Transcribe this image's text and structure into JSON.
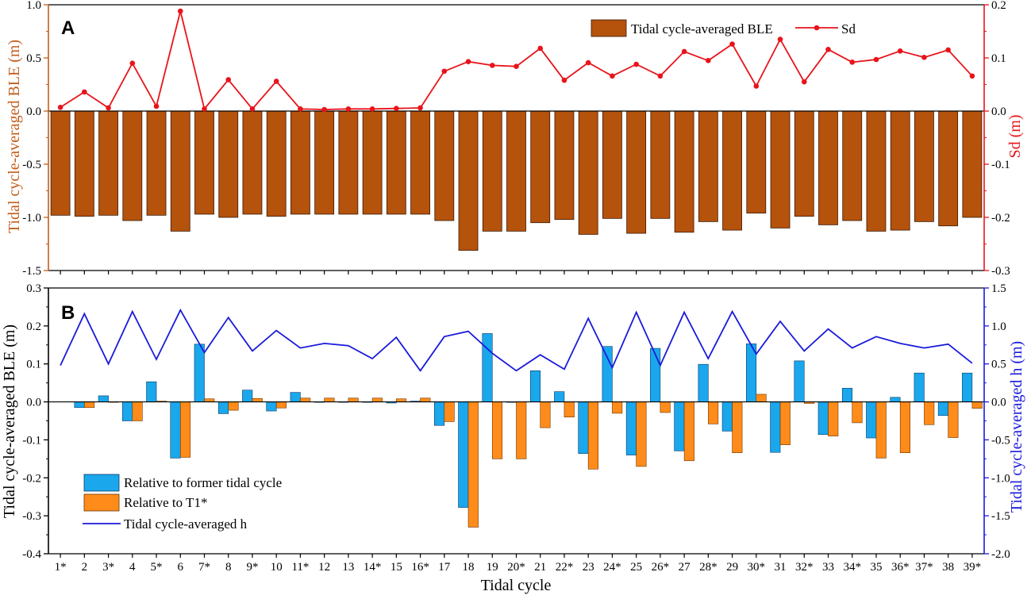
{
  "chart_data": [
    {
      "panel": "A",
      "type": "bar",
      "xlabel": "Tidal cycle",
      "categories": [
        "1*",
        "2",
        "3*",
        "4",
        "5*",
        "6",
        "7*",
        "8",
        "9*",
        "10",
        "11*",
        "12",
        "13",
        "14*",
        "15",
        "16*",
        "17",
        "18",
        "19",
        "20*",
        "21",
        "22*",
        "23",
        "24*",
        "25",
        "26*",
        "27",
        "28*",
        "29",
        "30*",
        "31",
        "32*",
        "33",
        "34*",
        "35",
        "36*",
        "37*",
        "38",
        "39*"
      ],
      "left_axis": {
        "label": "Tidal cycle-averaged BLE (m)",
        "ylim": [
          -1.5,
          1.0
        ],
        "ticks": [
          1.0,
          0.5,
          0.0,
          -0.5,
          -1.0,
          -1.5
        ],
        "tick_labels": [
          "1.0",
          "0.5",
          "0.0",
          "-0.5",
          "-1.0",
          "-1.5"
        ],
        "color": "#c25e1c"
      },
      "right_axis": {
        "label": "Sd (m)",
        "ylim": [
          -0.3,
          0.2
        ],
        "ticks": [
          0.2,
          0.1,
          0.0,
          -0.1,
          -0.2,
          -0.3
        ],
        "tick_labels": [
          "0.2",
          "0.1",
          "0.0",
          "-0.1",
          "-0.2",
          "-0.3"
        ],
        "color": "#e8141a"
      },
      "series": [
        {
          "name": "Tidal cycle-averaged BLE",
          "type": "bar",
          "axis": "left",
          "color": "#b5520c",
          "values": [
            -0.98,
            -0.99,
            -0.98,
            -1.03,
            -0.98,
            -1.13,
            -0.97,
            -1.0,
            -0.97,
            -0.99,
            -0.97,
            -0.97,
            -0.97,
            -0.97,
            -0.97,
            -0.97,
            -1.03,
            -1.31,
            -1.13,
            -1.13,
            -1.05,
            -1.02,
            -1.16,
            -1.01,
            -1.15,
            -1.01,
            -1.14,
            -1.04,
            -1.12,
            -0.96,
            -1.1,
            -0.99,
            -1.07,
            -1.03,
            -1.13,
            -1.12,
            -1.04,
            -1.08,
            -1.0
          ]
        },
        {
          "name": "Sd",
          "type": "line",
          "axis": "right",
          "color": "#e8141a",
          "values": [
            0.007,
            0.036,
            0.006,
            0.09,
            0.009,
            0.188,
            0.004,
            0.059,
            0.004,
            0.056,
            0.004,
            0.003,
            0.004,
            0.004,
            0.005,
            0.006,
            0.075,
            0.093,
            0.086,
            0.084,
            0.118,
            0.058,
            0.091,
            0.066,
            0.088,
            0.066,
            0.112,
            0.095,
            0.126,
            0.047,
            0.135,
            0.055,
            0.116,
            0.092,
            0.097,
            0.113,
            0.101,
            0.115,
            0.066
          ]
        }
      ],
      "legend": [
        "Tidal cycle-averaged BLE",
        "Sd"
      ],
      "legend_position": "top-right"
    },
    {
      "panel": "B",
      "type": "bar",
      "xlabel": "Tidal cycle",
      "categories": [
        "1*",
        "2",
        "3*",
        "4",
        "5*",
        "6",
        "7*",
        "8",
        "9*",
        "10",
        "11*",
        "12",
        "13",
        "14*",
        "15",
        "16*",
        "17",
        "18",
        "19",
        "20*",
        "21",
        "22*",
        "23",
        "24*",
        "25",
        "26*",
        "27",
        "28*",
        "29",
        "30*",
        "31",
        "32*",
        "33",
        "34*",
        "35",
        "36*",
        "37*",
        "38",
        "39*"
      ],
      "left_axis": {
        "label": "Tidal cycle-averaged BLE (m)",
        "ylim": [
          -0.4,
          0.3
        ],
        "ticks": [
          0.3,
          0.2,
          0.1,
          0.0,
          -0.1,
          -0.2,
          -0.3,
          -0.4
        ],
        "tick_labels": [
          "0.3",
          "0.2",
          "0.1",
          "0.0",
          "-0.1",
          "-0.2",
          "-0.3",
          "-0.4"
        ],
        "color": "#000000"
      },
      "right_axis": {
        "label": "Tidal cycle-averaged h (m)",
        "ylim": [
          -2.0,
          1.5
        ],
        "ticks": [
          1.5,
          1.0,
          0.5,
          0.0,
          -0.5,
          -1.0,
          -1.5,
          -2.0
        ],
        "tick_labels": [
          "1.5",
          "1.0",
          "0.5",
          "0.0",
          "-0.5",
          "-1.0",
          "-1.5",
          "-2.0"
        ],
        "color": "#1a1adc"
      },
      "series": [
        {
          "name": "Relative to former tidal cycle",
          "type": "bar",
          "axis": "left",
          "color": "#1aa7ec",
          "values": [
            null,
            -0.015,
            0.016,
            -0.05,
            0.053,
            -0.148,
            0.152,
            -0.031,
            0.031,
            -0.024,
            0.025,
            0.0,
            0.0,
            0.0,
            -0.003,
            0.002,
            -0.062,
            -0.278,
            0.18,
            0.0,
            0.082,
            0.027,
            -0.136,
            0.146,
            -0.14,
            0.141,
            -0.129,
            0.099,
            -0.077,
            0.153,
            -0.133,
            0.108,
            -0.086,
            0.036,
            -0.095,
            0.012,
            0.076,
            -0.036,
            0.076
          ]
        },
        {
          "name": "Relative to T1*",
          "type": "bar",
          "axis": "left",
          "color": "#ff8c1a",
          "values": [
            null,
            -0.015,
            0.0,
            -0.05,
            0.002,
            -0.146,
            0.008,
            -0.022,
            0.009,
            -0.016,
            0.01,
            0.01,
            0.01,
            0.01,
            0.008,
            0.01,
            -0.052,
            -0.33,
            -0.15,
            -0.15,
            -0.068,
            -0.04,
            -0.177,
            -0.03,
            -0.17,
            -0.028,
            -0.155,
            -0.058,
            -0.134,
            0.02,
            -0.113,
            -0.004,
            -0.09,
            -0.055,
            -0.148,
            -0.134,
            -0.06,
            -0.094,
            -0.017
          ]
        },
        {
          "name": "Tidal cycle-averaged h",
          "type": "line",
          "axis": "right",
          "color": "#1a1adc",
          "values": [
            0.48,
            1.16,
            0.5,
            1.19,
            0.56,
            1.21,
            0.65,
            1.11,
            0.67,
            0.94,
            0.71,
            0.77,
            0.74,
            0.57,
            0.85,
            0.41,
            0.86,
            0.93,
            0.64,
            0.41,
            0.62,
            0.43,
            1.1,
            0.45,
            1.18,
            0.48,
            1.18,
            0.57,
            1.19,
            0.63,
            1.06,
            0.67,
            0.96,
            0.71,
            0.86,
            0.77,
            0.71,
            0.76,
            0.51
          ]
        }
      ],
      "legend": [
        "Relative to former tidal cycle",
        "Relative to T1*",
        "Tidal cycle-averaged h"
      ],
      "legend_position": "bottom-left"
    }
  ]
}
